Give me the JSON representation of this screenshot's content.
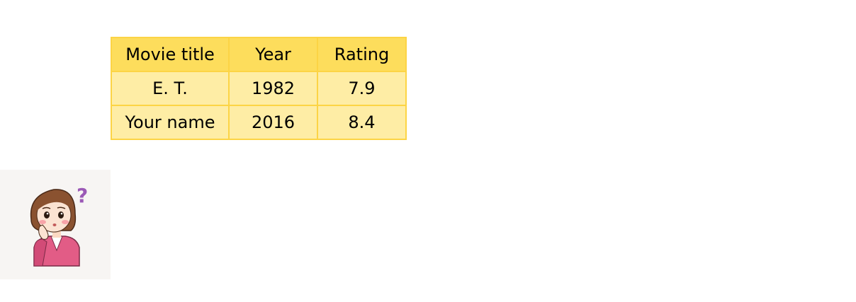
{
  "table": {
    "headers": [
      "Movie title",
      "Year",
      "Rating"
    ],
    "rows": [
      [
        "E. T.",
        "1982",
        "7.9"
      ],
      [
        "Your name",
        "2016",
        "8.4"
      ]
    ]
  },
  "avatar": {
    "icon": "confused-woman-avatar",
    "question_mark": "?",
    "colors": {
      "jacket": "#e25c86",
      "hair": "#8a5230",
      "question": "#9b59b6"
    }
  }
}
